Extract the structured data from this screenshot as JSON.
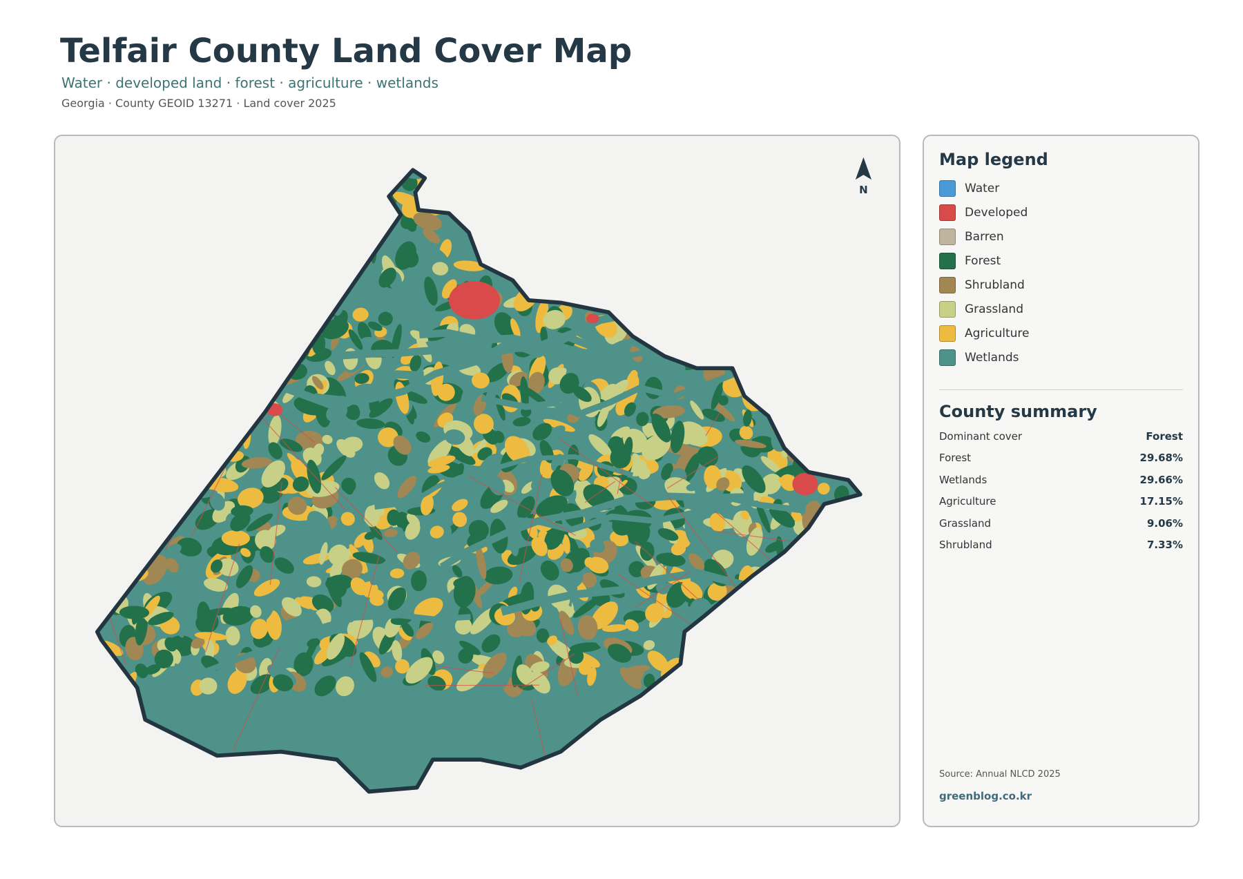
{
  "header": {
    "title": "Telfair County Land Cover Map",
    "subtitle": "Water · developed land · forest · agriculture · wetlands",
    "meta": "Georgia · County GEOID 13271 · Land cover 2025"
  },
  "map": {
    "north_label": "N"
  },
  "legend": {
    "title": "Map legend",
    "items": [
      {
        "label": "Water",
        "color": "#4a9ad8"
      },
      {
        "label": "Developed",
        "color": "#d94a4a"
      },
      {
        "label": "Barren",
        "color": "#bfb59f"
      },
      {
        "label": "Forest",
        "color": "#23714a"
      },
      {
        "label": "Shrubland",
        "color": "#a08753"
      },
      {
        "label": "Grassland",
        "color": "#c8cf86"
      },
      {
        "label": "Agriculture",
        "color": "#ecbb3f"
      },
      {
        "label": "Wetlands",
        "color": "#4e9289"
      }
    ]
  },
  "summary": {
    "title": "County summary",
    "rows": [
      [
        "Dominant cover",
        "Forest"
      ],
      [
        "Forest",
        "29.68%"
      ],
      [
        "Wetlands",
        "29.66%"
      ],
      [
        "Agriculture",
        "17.15%"
      ],
      [
        "Grassland",
        "9.06%"
      ],
      [
        "Shrubland",
        "7.33%"
      ]
    ],
    "source": "Source: Annual NLCD 2025",
    "site": "greenblog.co.kr"
  }
}
